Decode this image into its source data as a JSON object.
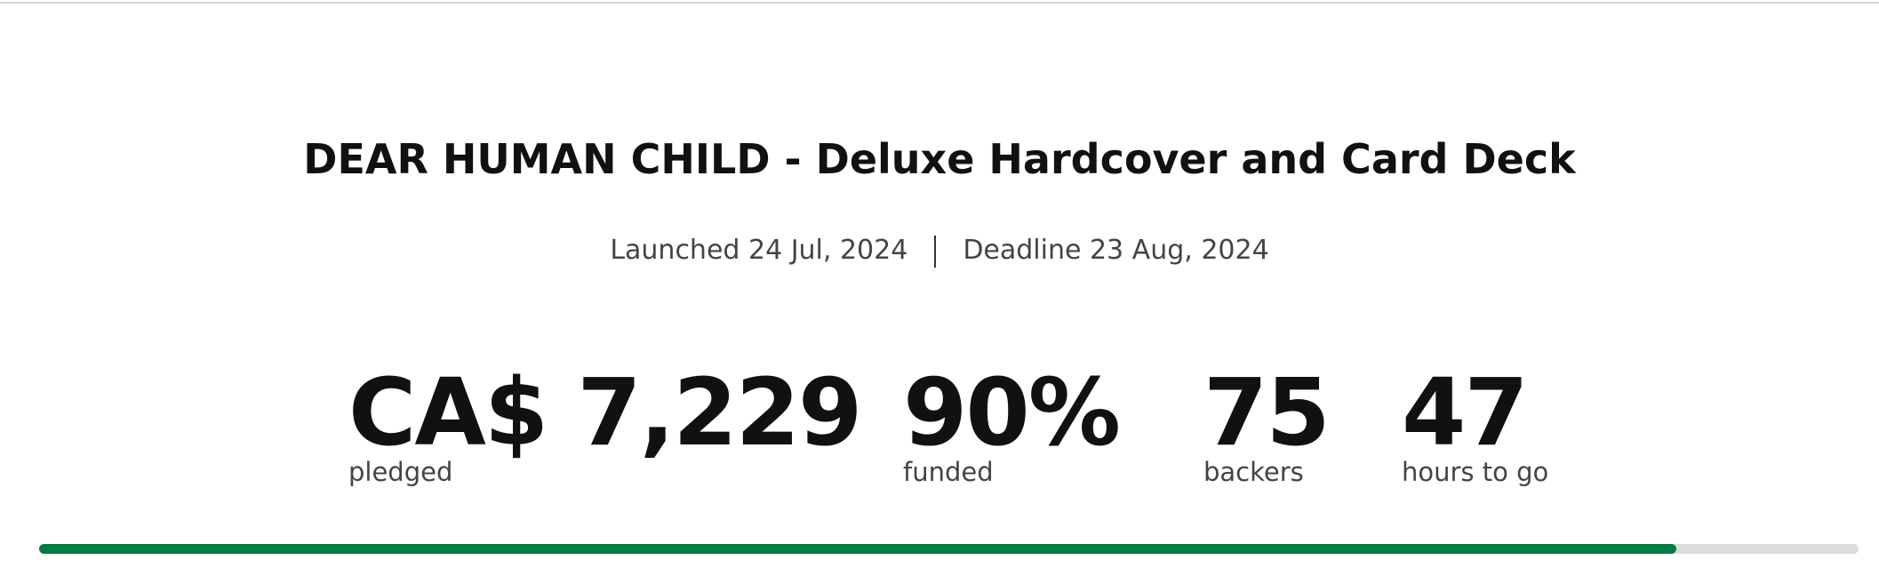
{
  "project": {
    "title": "DEAR HUMAN CHILD - Deluxe Hardcover and Card Deck",
    "launched": "Launched 24 Jul, 2024",
    "deadline": "Deadline 23 Aug, 2024"
  },
  "stats": [
    {
      "value": "CA$ 7,229",
      "label": "pledged"
    },
    {
      "value": {
        "value": 90,
        "label": "90%"
      },
      "label": "funded"
    },
    {
      "value": "75",
      "label": "backers"
    },
    {
      "value": "47",
      "label": "hours to go"
    }
  ]
}
